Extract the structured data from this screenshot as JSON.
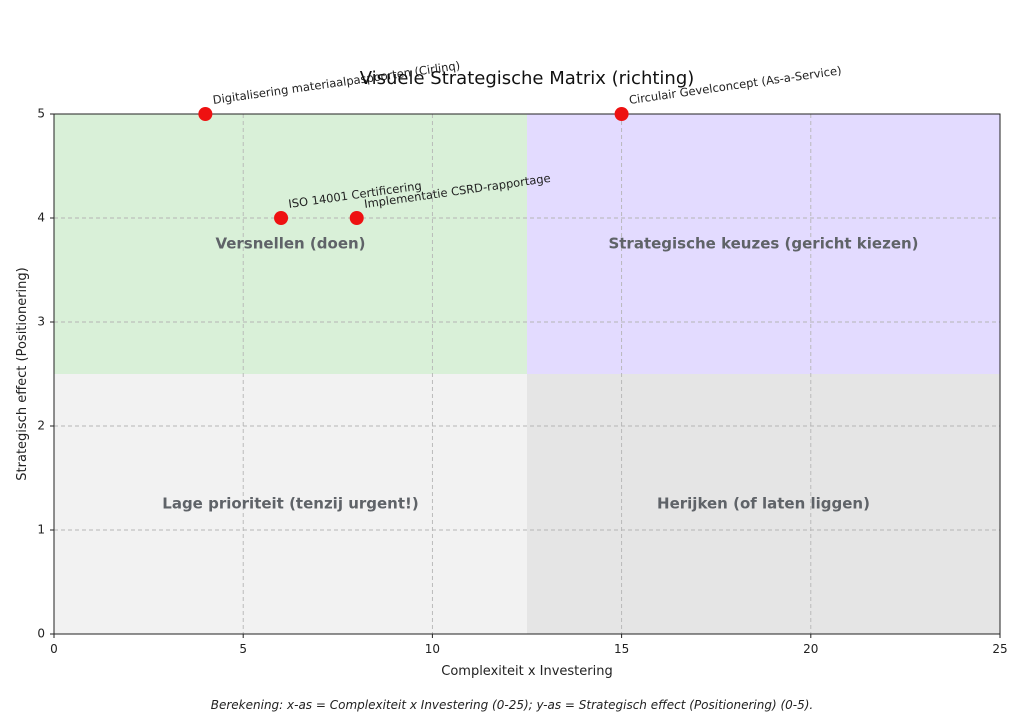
{
  "chart_data": {
    "type": "scatter",
    "title": "Visuele Strategische Matrix (richting)",
    "xlabel": "Complexiteit x Investering",
    "ylabel": "Strategisch effect (Positionering)",
    "xlim": [
      0,
      25
    ],
    "ylim": [
      0,
      5
    ],
    "x_ticks": [
      0,
      5,
      10,
      15,
      20,
      25
    ],
    "y_ticks": [
      0,
      1,
      2,
      3,
      4,
      5
    ],
    "grid": true,
    "split_x": 12.5,
    "split_y": 2.5,
    "quadrants": [
      {
        "name": "Versnellen (doen)",
        "position": "top-left",
        "color": "#d9f0d8"
      },
      {
        "name": "Strategische keuzes (gericht kiezen)",
        "position": "top-right",
        "color": "#e3dbff"
      },
      {
        "name": "Lage prioriteit (tenzij urgent!)",
        "position": "bottom-left",
        "color": "#f2f2f2"
      },
      {
        "name": "Herijken (of laten liggen)",
        "position": "bottom-right",
        "color": "#e5e5e5"
      }
    ],
    "point_color": "#ee1111",
    "points": [
      {
        "label": "Digitalisering materiaalpaspoorten (Cirlinq)",
        "x": 4,
        "y": 5
      },
      {
        "label": "Circulair Gevelconcept (As-a-Service)",
        "x": 15,
        "y": 5
      },
      {
        "label": "ISO 14001 Certificering",
        "x": 6,
        "y": 4
      },
      {
        "label": "Implementatie CSRD-rapportage",
        "x": 8,
        "y": 4
      }
    ],
    "footnote": "Berekening: x-as = Complexiteit x Investering (0-25); y-as = Strategisch effect (Positionering) (0-5)."
  }
}
